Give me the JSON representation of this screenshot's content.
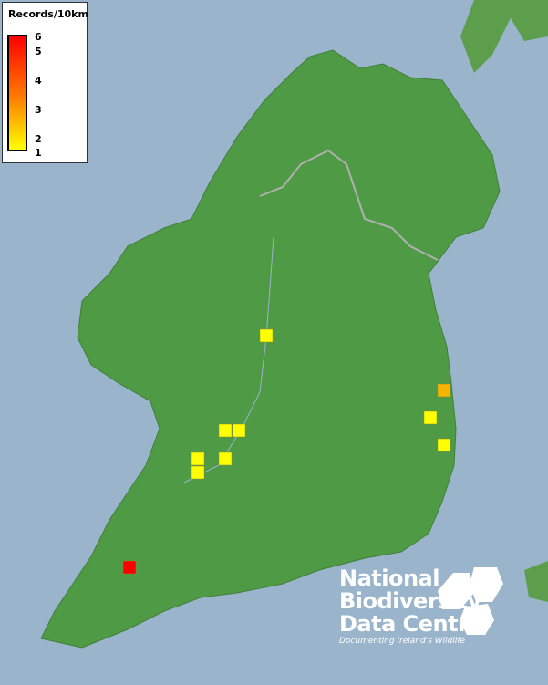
{
  "legend": {
    "title": "Records/10km",
    "ticks": [
      "6",
      "5",
      "4",
      "3",
      "2",
      "1"
    ],
    "scale_min": 1,
    "scale_max": 6,
    "colors": {
      "low": "#ffff00",
      "mid": "#ff8000",
      "high": "#ff0000"
    }
  },
  "records": [
    {
      "value": 1
    },
    {
      "value": 2
    },
    {
      "value": 1
    },
    {
      "value": 1
    },
    {
      "value": 1
    },
    {
      "value": 1
    },
    {
      "value": 1
    },
    {
      "value": 1
    },
    {
      "value": 1
    },
    {
      "value": 6
    }
  ],
  "logo": {
    "line1": "National",
    "line2": "Biodiversity",
    "line3": "Data Centre",
    "tagline": "Documenting Ireland's Wildlife"
  },
  "colors": {
    "sea": "#9ab4cc",
    "land": "#4f9a45",
    "border": "#b0b0b0"
  }
}
